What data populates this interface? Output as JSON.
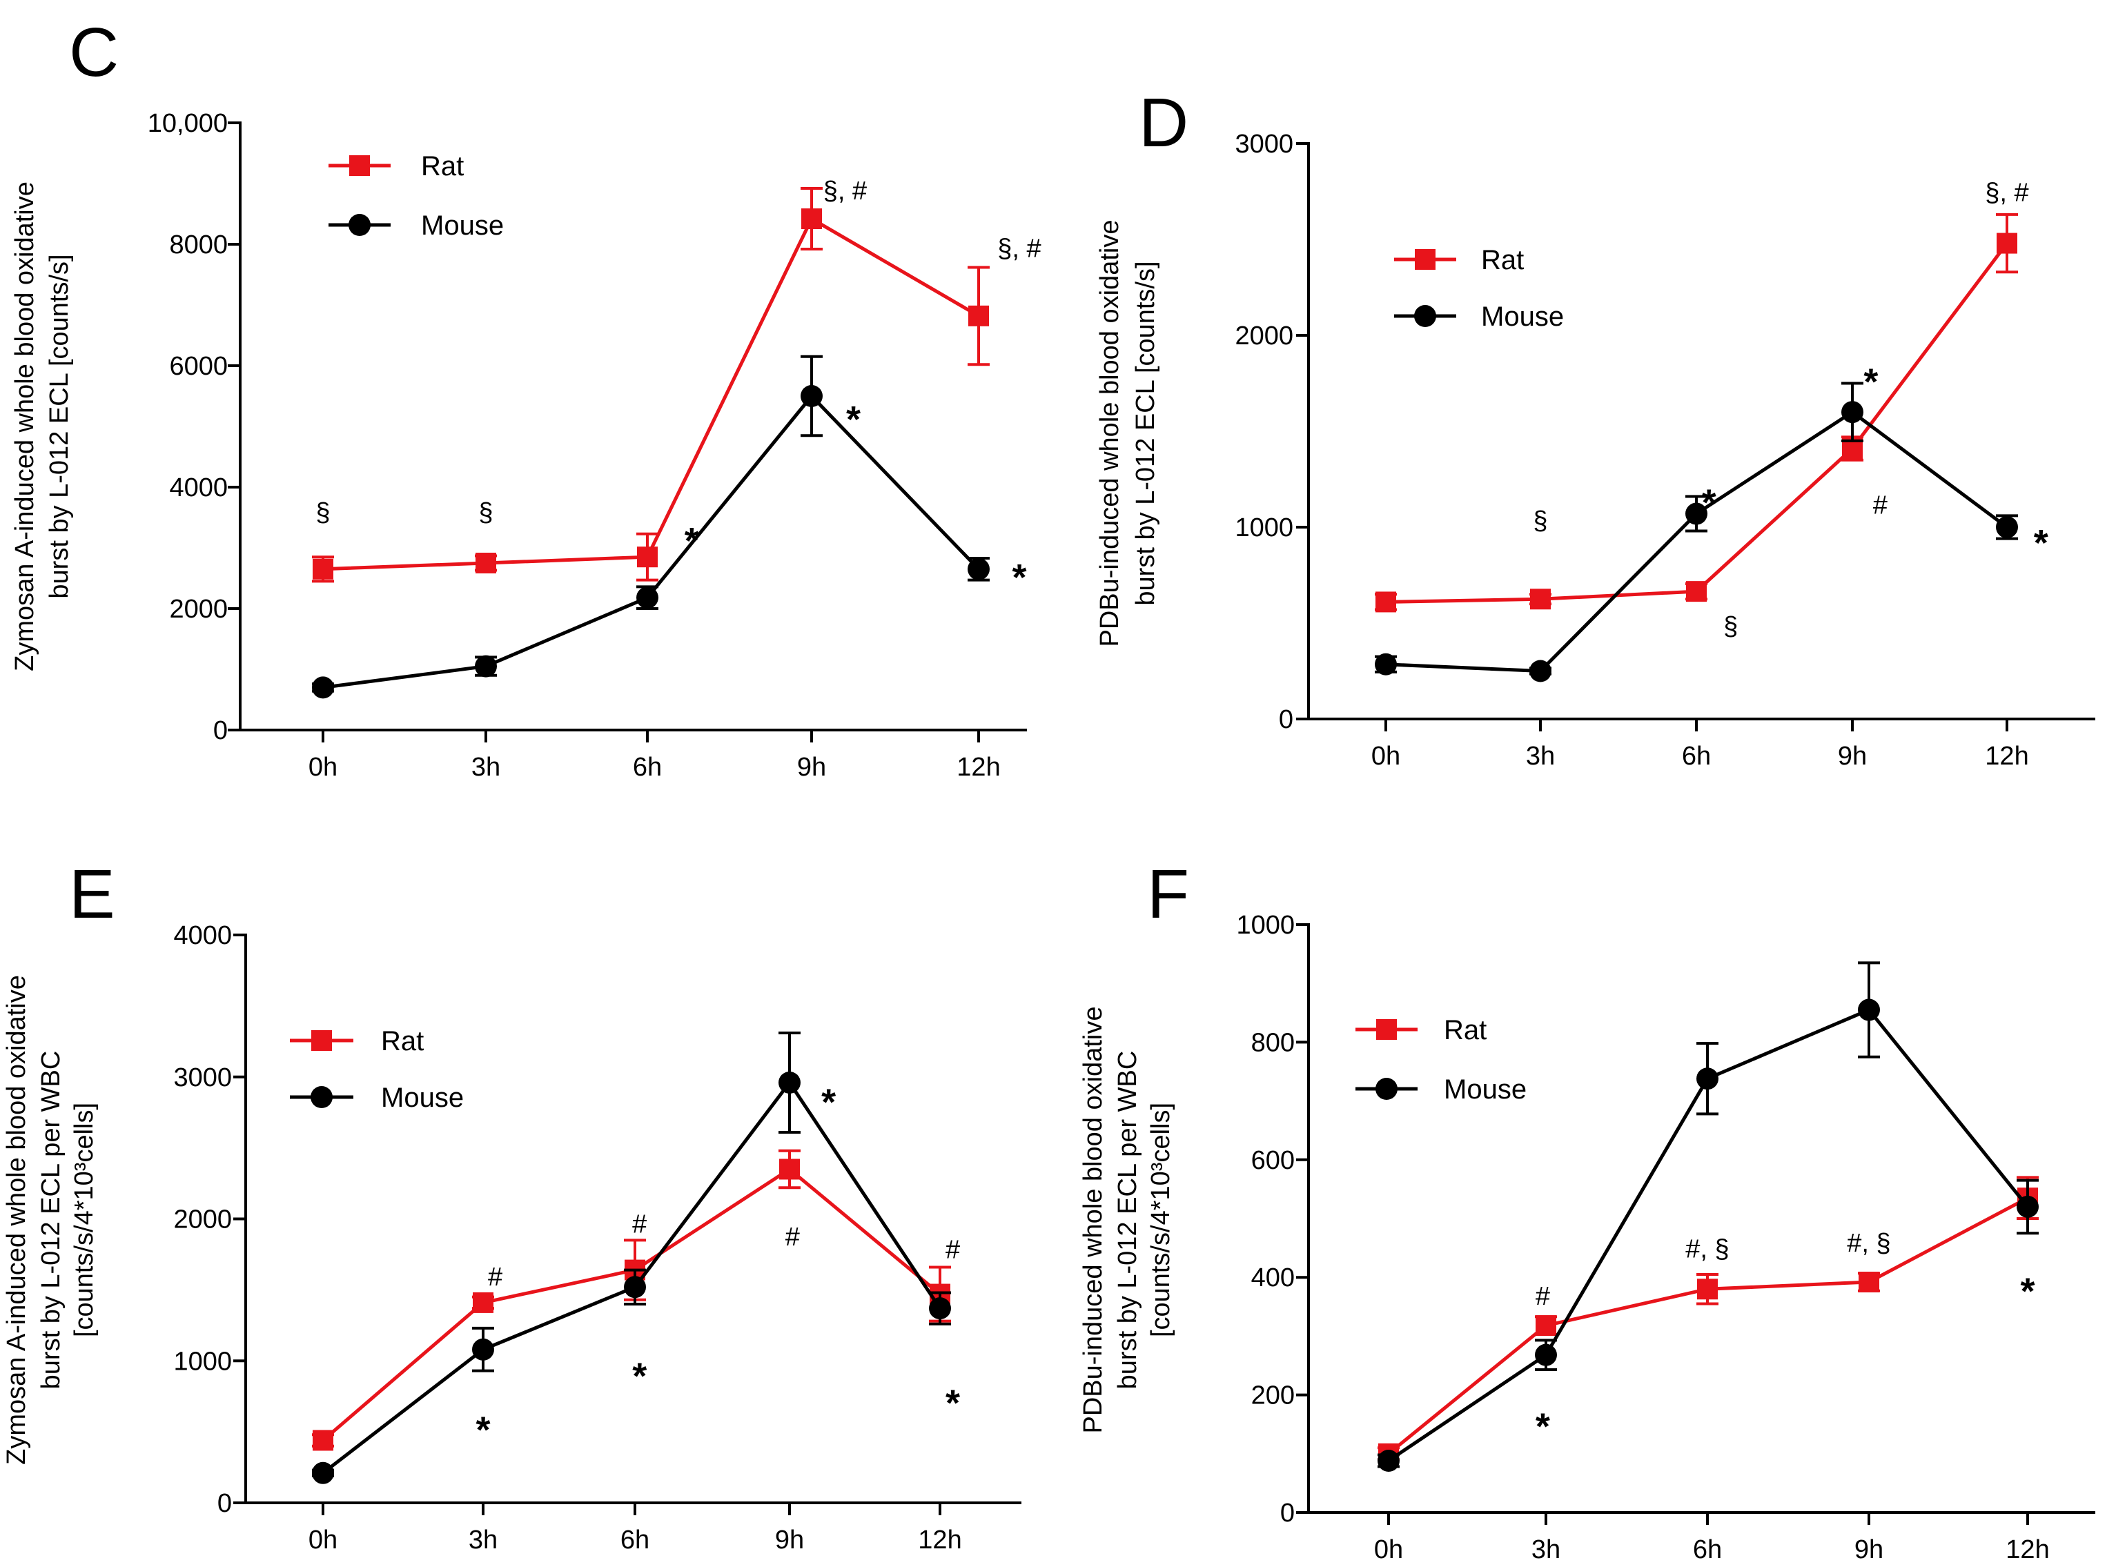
{
  "chart_data": [
    {
      "panel": "C",
      "type": "line",
      "ylabel": [
        "Zymosan A-induced whole blood oxidative",
        "burst by L-012 ECL [counts/s]"
      ],
      "categories": [
        "0h",
        "3h",
        "6h",
        "9h",
        "12h"
      ],
      "ylim": [
        0,
        10000
      ],
      "yticks": [
        0,
        2000,
        4000,
        6000,
        8000,
        10000
      ],
      "ytick_labels": [
        "0",
        "2000",
        "4000",
        "6000",
        "8000",
        "10,000"
      ],
      "legend": [
        "Rat",
        "Mouse"
      ],
      "series": [
        {
          "name": "Rat",
          "color": "#e8141b",
          "marker": "square",
          "values": [
            2650,
            2750,
            2850,
            8420,
            6820
          ],
          "errors": [
            200,
            120,
            380,
            500,
            800
          ]
        },
        {
          "name": "Mouse",
          "color": "#000000",
          "marker": "circle",
          "values": [
            700,
            1050,
            2180,
            5500,
            2650
          ],
          "errors": [
            60,
            150,
            180,
            650,
            180
          ]
        }
      ],
      "annotations": [
        {
          "text": "§",
          "x": 0,
          "y": 3600
        },
        {
          "text": "§",
          "x": 1,
          "y": 3600
        },
        {
          "text": "*",
          "x": 2.27,
          "y": 3250
        },
        {
          "text": "§,  #",
          "x": 3.2,
          "y": 8900
        },
        {
          "text": "*",
          "x": 3.25,
          "y": 5250
        },
        {
          "text": "§, #",
          "x": 4.25,
          "y": 7950
        },
        {
          "text": "*",
          "x": 4.25,
          "y": 2650
        }
      ]
    },
    {
      "panel": "D",
      "type": "line",
      "ylabel": [
        "PDBu-induced whole blood oxidative",
        "burst by L-012 ECL [counts/s]"
      ],
      "categories": [
        "0h",
        "3h",
        "6h",
        "9h",
        "12h"
      ],
      "ylim": [
        0,
        3000
      ],
      "yticks": [
        0,
        1000,
        2000,
        3000
      ],
      "ytick_labels": [
        "0",
        "1000",
        "2000",
        "3000"
      ],
      "legend": [
        "Rat",
        "Mouse"
      ],
      "series": [
        {
          "name": "Rat",
          "color": "#e8141b",
          "marker": "square",
          "values": [
            610,
            625,
            665,
            1410,
            2480
          ],
          "errors": [
            40,
            25,
            40,
            60,
            150
          ]
        },
        {
          "name": "Mouse",
          "color": "#000000",
          "marker": "circle",
          "values": [
            285,
            250,
            1070,
            1600,
            1000
          ],
          "errors": [
            40,
            15,
            90,
            150,
            60
          ]
        }
      ],
      "annotations": [
        {
          "text": "§",
          "x": 1,
          "y": 1040
        },
        {
          "text": "*",
          "x": 2.08,
          "y": 1170
        },
        {
          "text": "§",
          "x": 2.22,
          "y": 490
        },
        {
          "text": "*",
          "x": 3.12,
          "y": 1800
        },
        {
          "text": "#",
          "x": 3.18,
          "y": 1120
        },
        {
          "text": "§,  #",
          "x": 4,
          "y": 2750
        },
        {
          "text": "*",
          "x": 4.22,
          "y": 960
        }
      ]
    },
    {
      "panel": "E",
      "type": "line",
      "ylabel": [
        "Zymosan A-induced whole  blood oxidative",
        "burst by L-012 ECL  per WBC",
        "[counts/s/4*10³cells]"
      ],
      "categories": [
        "0h",
        "3h",
        "6h",
        "9h",
        "12h"
      ],
      "ylim": [
        0,
        4000
      ],
      "yticks": [
        0,
        1000,
        2000,
        3000,
        4000
      ],
      "ytick_labels": [
        "0",
        "1000",
        "2000",
        "3000",
        "4000"
      ],
      "legend": [
        "Rat",
        "Mouse"
      ],
      "series": [
        {
          "name": "Rat",
          "color": "#e8141b",
          "marker": "square",
          "values": [
            440,
            1410,
            1640,
            2350,
            1470
          ],
          "errors": [
            40,
            40,
            210,
            130,
            190
          ]
        },
        {
          "name": "Mouse",
          "color": "#000000",
          "marker": "circle",
          "values": [
            210,
            1080,
            1520,
            2960,
            1370
          ],
          "errors": [
            20,
            150,
            120,
            350,
            110
          ]
        }
      ],
      "annotations": [
        {
          "text": "#",
          "x": 1.08,
          "y": 1600
        },
        {
          "text": "*",
          "x": 1,
          "y": 570
        },
        {
          "text": "#",
          "x": 2.03,
          "y": 1970
        },
        {
          "text": "*",
          "x": 2.03,
          "y": 950
        },
        {
          "text": "*",
          "x": 3.26,
          "y": 2880
        },
        {
          "text": "#",
          "x": 3.02,
          "y": 1880
        },
        {
          "text": "#",
          "x": 4.08,
          "y": 1790
        },
        {
          "text": "*",
          "x": 4.08,
          "y": 760
        }
      ]
    },
    {
      "panel": "F",
      "type": "line",
      "ylabel": [
        "PDBu-induced whole  blood oxidative",
        "burst by L-012 ECL  per WBC",
        "[counts/s/4*10³cells]"
      ],
      "categories": [
        "0h",
        "3h",
        "6h",
        "9h",
        "12h"
      ],
      "ylim": [
        0,
        1000
      ],
      "yticks": [
        0,
        200,
        400,
        600,
        800,
        1000
      ],
      "ytick_labels": [
        "0",
        "200",
        "400",
        "600",
        "800",
        "1000"
      ],
      "legend": [
        "Rat",
        "Mouse"
      ],
      "series": [
        {
          "name": "Rat",
          "color": "#e8141b",
          "marker": "square",
          "values": [
            100,
            318,
            380,
            392,
            535
          ],
          "errors": [
            10,
            15,
            25,
            15,
            35
          ]
        },
        {
          "name": "Mouse",
          "color": "#000000",
          "marker": "circle",
          "values": [
            88,
            268,
            738,
            855,
            520
          ],
          "errors": [
            10,
            25,
            60,
            80,
            45
          ]
        }
      ],
      "annotations": [
        {
          "text": "#",
          "x": 0.98,
          "y": 370
        },
        {
          "text": "*",
          "x": 0.98,
          "y": 160
        },
        {
          "text": "#,  §",
          "x": 2.0,
          "y": 450
        },
        {
          "text": "#,  §",
          "x": 3.0,
          "y": 460
        },
        {
          "text": "*",
          "x": 4.0,
          "y": 390
        }
      ]
    }
  ]
}
